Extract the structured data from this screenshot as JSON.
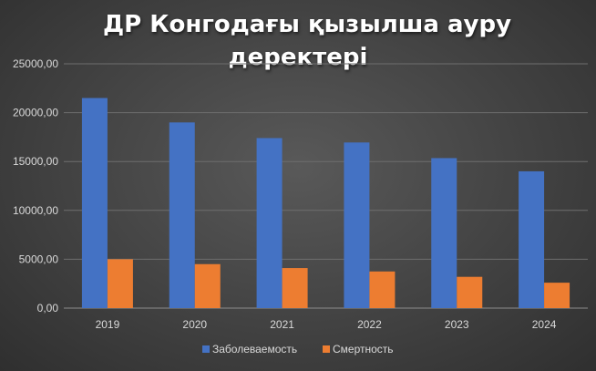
{
  "chart_data": {
    "type": "bar",
    "title_lines": [
      "ДР Конгодағы қызылша ауру",
      "деректері"
    ],
    "categories": [
      "2019",
      "2020",
      "2021",
      "2022",
      "2023",
      "2024"
    ],
    "series": [
      {
        "name": "Заболеваемость",
        "color": "#4472C4",
        "values": [
          21500,
          19000,
          17400,
          16950,
          15350,
          14000
        ]
      },
      {
        "name": "Смертность",
        "color": "#ED7D31",
        "values": [
          5000,
          4500,
          4100,
          3750,
          3200,
          2600
        ]
      }
    ],
    "ylim": [
      0,
      25000
    ],
    "y_ticks": [
      "0,00",
      "5000,00",
      "10000,00",
      "15000,00",
      "20000,00",
      "25000,00"
    ],
    "y_tick_values": [
      0,
      5000,
      10000,
      15000,
      20000,
      25000
    ],
    "grid": true,
    "legend_position": "bottom"
  }
}
